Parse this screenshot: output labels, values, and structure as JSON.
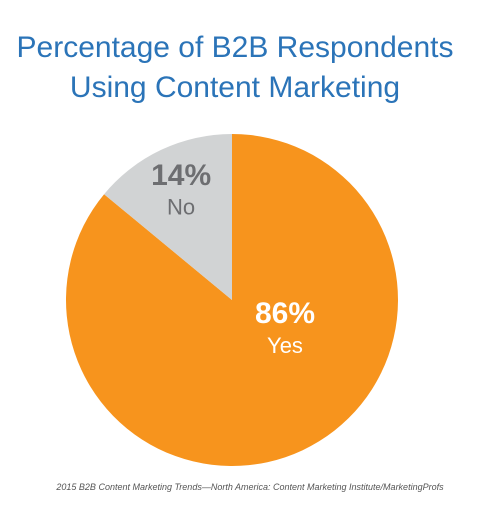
{
  "chart_data": {
    "type": "pie",
    "title": "Percentage of B2B Respondents Using Content Marketing",
    "categories": [
      "Yes",
      "No"
    ],
    "values": [
      86,
      14
    ],
    "value_labels": [
      "86%",
      "14%"
    ],
    "colors": [
      "#f7941d",
      "#d1d3d4"
    ],
    "source": "2015 B2B Content Marketing Trends—North America: Content Marketing Institute/MarketingProfs"
  }
}
